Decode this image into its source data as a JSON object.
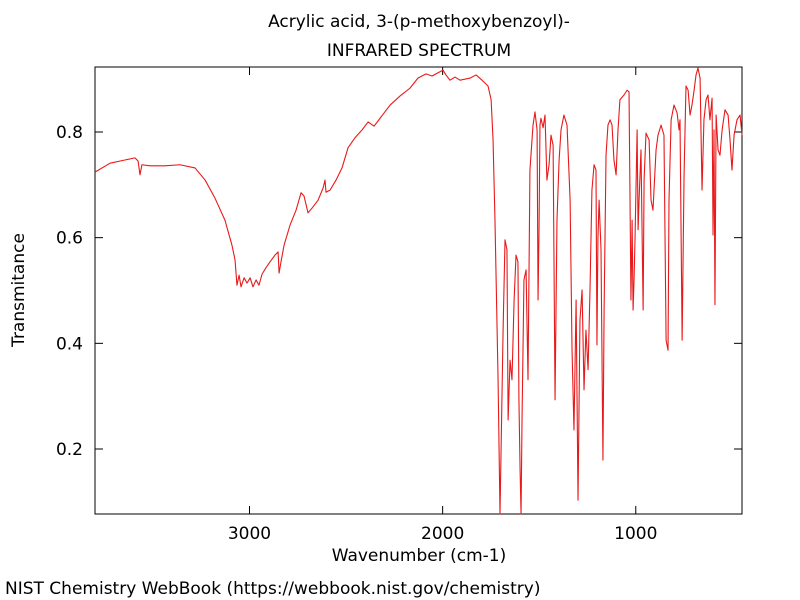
{
  "chart_data": {
    "type": "line",
    "title": "Acrylic acid, 3-(p-methoxybenzoyl)-",
    "subtitle": "INFRARED SPECTRUM",
    "xlabel": "Wavenumber (cm-1)",
    "ylabel": "Transmitance",
    "source": "NIST Chemistry WebBook (https://webbook.nist.gov/chemistry)",
    "xlim": [
      3800,
      450
    ],
    "ylim": [
      0.077,
      0.923
    ],
    "xticks": [
      3000,
      2000,
      1000
    ],
    "yticks": [
      0.2,
      0.4,
      0.6,
      0.8
    ],
    "grid": false,
    "series": [
      {
        "color": "#e8191a",
        "x": [
          3800,
          3722,
          3645,
          3593,
          3577,
          3567,
          3557,
          3515,
          3438,
          3360,
          3282,
          3230,
          3179,
          3127,
          3091,
          3075,
          3065,
          3054,
          3044,
          3028,
          3013,
          2997,
          2982,
          2966,
          2951,
          2935,
          2915,
          2894,
          2868,
          2852,
          2847,
          2837,
          2821,
          2790,
          2759,
          2733,
          2718,
          2697,
          2676,
          2645,
          2619,
          2609,
          2604,
          2583,
          2552,
          2521,
          2490,
          2454,
          2417,
          2386,
          2355,
          2324,
          2272,
          2221,
          2169,
          2128,
          2086,
          2055,
          2014,
          1998,
          1983,
          1962,
          1936,
          1910,
          1858,
          1827,
          1796,
          1765,
          1749,
          1739,
          1729,
          1713,
          1703,
          1687,
          1677,
          1667,
          1661,
          1651,
          1641,
          1630,
          1620,
          1610,
          1605,
          1599,
          1594,
          1589,
          1579,
          1568,
          1558,
          1548,
          1532,
          1522,
          1511,
          1506,
          1501,
          1496,
          1491,
          1480,
          1470,
          1460,
          1449,
          1439,
          1428,
          1418,
          1408,
          1397,
          1387,
          1372,
          1356,
          1340,
          1330,
          1320,
          1309,
          1299,
          1289,
          1278,
          1268,
          1258,
          1247,
          1237,
          1227,
          1216,
          1206,
          1201,
          1196,
          1190,
          1180,
          1170,
          1164,
          1154,
          1144,
          1133,
          1123,
          1113,
          1102,
          1092,
          1082,
          1061,
          1045,
          1035,
          1025,
          1019,
          1014,
          1009,
          1004,
          993,
          988,
          983,
          973,
          962,
          957,
          947,
          931,
          921,
          911,
          895,
          885,
          869,
          854,
          843,
          833,
          828,
          817,
          802,
          786,
          776,
          771,
          760,
          750,
          740,
          729,
          719,
          709,
          698,
          688,
          678,
          667,
          657,
          647,
          636,
          626,
          616,
          605,
          600,
          595,
          590,
          584,
          574,
          564,
          553,
          538,
          522,
          512,
          502,
          491,
          476,
          460,
          450
        ],
        "values": [
          0.724,
          0.741,
          0.747,
          0.751,
          0.745,
          0.719,
          0.738,
          0.736,
          0.736,
          0.738,
          0.732,
          0.709,
          0.675,
          0.633,
          0.586,
          0.558,
          0.51,
          0.529,
          0.507,
          0.524,
          0.514,
          0.524,
          0.507,
          0.52,
          0.51,
          0.531,
          0.543,
          0.554,
          0.567,
          0.573,
          0.533,
          0.554,
          0.586,
          0.624,
          0.652,
          0.685,
          0.679,
          0.647,
          0.656,
          0.671,
          0.694,
          0.709,
          0.686,
          0.69,
          0.709,
          0.732,
          0.77,
          0.789,
          0.804,
          0.819,
          0.811,
          0.826,
          0.851,
          0.868,
          0.883,
          0.902,
          0.91,
          0.906,
          0.914,
          0.917,
          0.908,
          0.898,
          0.904,
          0.898,
          0.902,
          0.908,
          0.898,
          0.887,
          0.861,
          0.785,
          0.633,
          0.331,
          0.077,
          0.425,
          0.596,
          0.577,
          0.255,
          0.368,
          0.331,
          0.482,
          0.567,
          0.554,
          0.293,
          0.16,
          0.077,
          0.255,
          0.52,
          0.539,
          0.331,
          0.728,
          0.813,
          0.838,
          0.804,
          0.482,
          0.615,
          0.813,
          0.826,
          0.808,
          0.832,
          0.709,
          0.738,
          0.794,
          0.775,
          0.293,
          0.633,
          0.747,
          0.804,
          0.832,
          0.813,
          0.671,
          0.387,
          0.236,
          0.482,
          0.103,
          0.444,
          0.501,
          0.312,
          0.425,
          0.35,
          0.501,
          0.69,
          0.738,
          0.728,
          0.397,
          0.596,
          0.671,
          0.577,
          0.179,
          0.463,
          0.756,
          0.813,
          0.823,
          0.813,
          0.747,
          0.719,
          0.804,
          0.861,
          0.87,
          0.879,
          0.876,
          0.482,
          0.633,
          0.463,
          0.52,
          0.596,
          0.804,
          0.615,
          0.671,
          0.766,
          0.463,
          0.709,
          0.798,
          0.785,
          0.671,
          0.652,
          0.766,
          0.794,
          0.813,
          0.794,
          0.406,
          0.387,
          0.671,
          0.823,
          0.851,
          0.836,
          0.804,
          0.823,
          0.406,
          0.719,
          0.887,
          0.879,
          0.832,
          0.851,
          0.879,
          0.908,
          0.921,
          0.902,
          0.69,
          0.823,
          0.861,
          0.87,
          0.823,
          0.864,
          0.605,
          0.804,
          0.473,
          0.832,
          0.766,
          0.756,
          0.804,
          0.842,
          0.832,
          0.785,
          0.728,
          0.794,
          0.823,
          0.832,
          0.794
        ]
      }
    ]
  }
}
